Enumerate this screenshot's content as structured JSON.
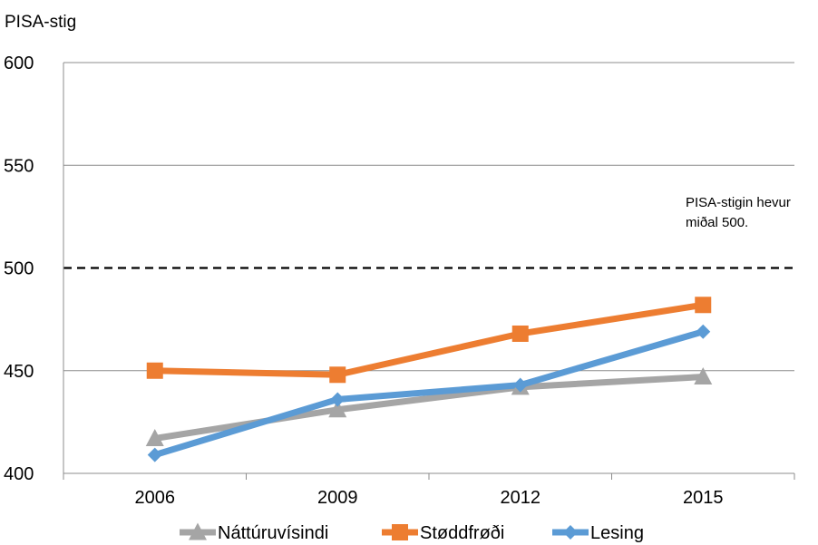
{
  "chart_data": {
    "type": "line",
    "title": "",
    "ylabel": "PISA-stig",
    "xlabel": "",
    "categories": [
      "2006",
      "2009",
      "2012",
      "2015"
    ],
    "ylim": [
      400,
      600
    ],
    "yticks": [
      400,
      450,
      500,
      550,
      600
    ],
    "grid": true,
    "legend_position": "bottom",
    "reference_line": {
      "value": 500,
      "style": "dashed",
      "color": "#000000"
    },
    "annotation": {
      "lines": [
        "PISA-stigin hevur",
        "miðal 500."
      ]
    },
    "series": [
      {
        "name": "Náttúruvísindi",
        "values": [
          417,
          431,
          442,
          447
        ],
        "color": "#a5a5a5",
        "marker": "triangle"
      },
      {
        "name": "Støddfrøði",
        "values": [
          450,
          448,
          468,
          482
        ],
        "color": "#ed7d31",
        "marker": "square"
      },
      {
        "name": "Lesing",
        "values": [
          409,
          436,
          443,
          469
        ],
        "color": "#5b9bd5",
        "marker": "diamond"
      }
    ]
  }
}
